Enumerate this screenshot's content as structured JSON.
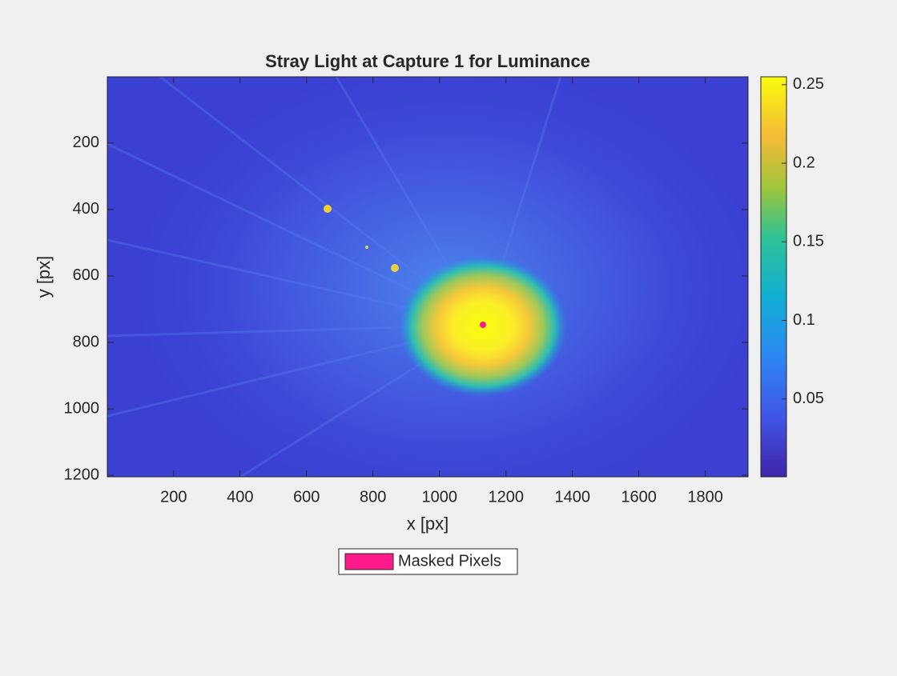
{
  "chart_data": {
    "type": "heatmap",
    "title": "Stray Light at Capture 1 for Luminance",
    "xlabel": "x [px]",
    "ylabel": "y [px]",
    "xlim": [
      0.5,
      1928.5
    ],
    "ylim": [
      0.5,
      1204.5
    ],
    "y_reversed": true,
    "xticks": [
      200,
      400,
      600,
      800,
      1000,
      1200,
      1400,
      1600,
      1800
    ],
    "yticks": [
      200,
      400,
      600,
      800,
      1000,
      1200
    ],
    "colorbar": {
      "lim": [
        0.0005,
        0.255
      ],
      "ticks": [
        0.05,
        0.1,
        0.15,
        0.2,
        0.25
      ]
    },
    "legend": {
      "entries": [
        {
          "name": "Masked Pixels",
          "color": "#ff1a8c"
        }
      ]
    }
  }
}
